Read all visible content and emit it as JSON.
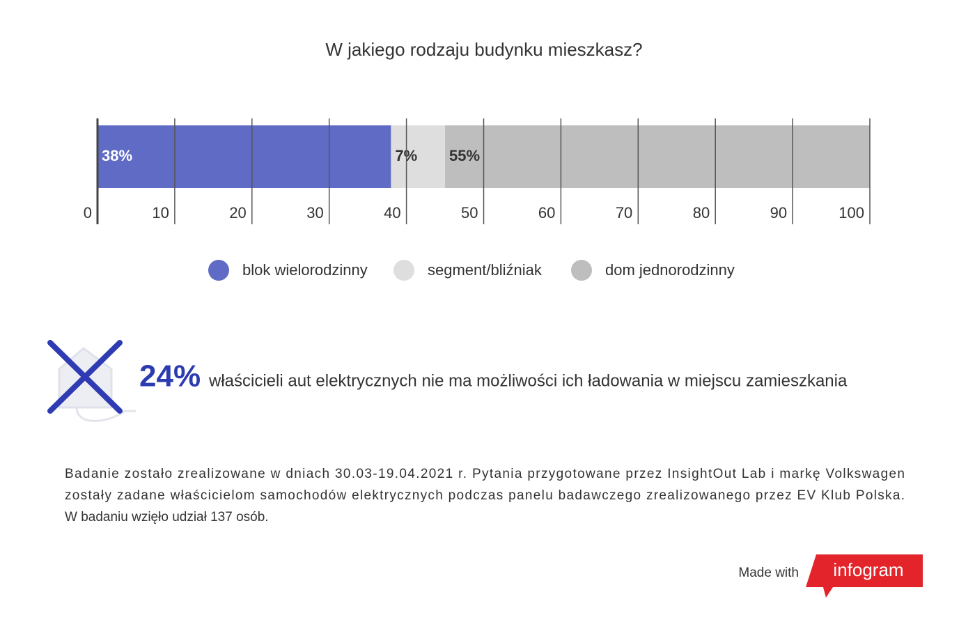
{
  "chart_data": {
    "type": "stacked_bar",
    "orientation": "horizontal",
    "title": "W jakiego rodzaju budynku mieszkasz?",
    "categories": [
      null
    ],
    "series": [
      {
        "name": "blok wielorodzinny",
        "color": "#5f6bc4",
        "values": [
          38
        ],
        "value_labels": [
          "38%"
        ],
        "label_color": "#ffffff"
      },
      {
        "name": "segment/bliźniak",
        "color": "#dedede",
        "values": [
          7
        ],
        "value_labels": [
          "7%"
        ],
        "label_color": "#333333"
      },
      {
        "name": "dom jednorodzinny",
        "color": "#bebebe",
        "values": [
          55
        ],
        "value_labels": [
          "55%"
        ],
        "label_color": "#333333"
      }
    ],
    "xlim": [
      0,
      100
    ],
    "xticks": [
      0,
      10,
      20,
      30,
      40,
      50,
      60,
      70,
      80,
      90,
      100
    ],
    "grid": true
  },
  "callout": {
    "value": "24%",
    "text": "właścicieli aut elektrycznych nie ma możliwości ich ładowania w miejscu zamieszkania"
  },
  "footnote": {
    "lines": [
      "Badanie zostało zrealizowane w dniach 30.03-19.04.2021 r. Pytania przygotowane przez InsightOut Lab i markę Volkswagen",
      "zostały zadane właścicielom samochodów elektrycznych podczas panelu badawczego zrealizowanego przez EV Klub Polska.",
      "W badaniu wzięło udział 137 osób."
    ]
  },
  "branding": {
    "prefix": "Made with",
    "name": "infogram"
  }
}
